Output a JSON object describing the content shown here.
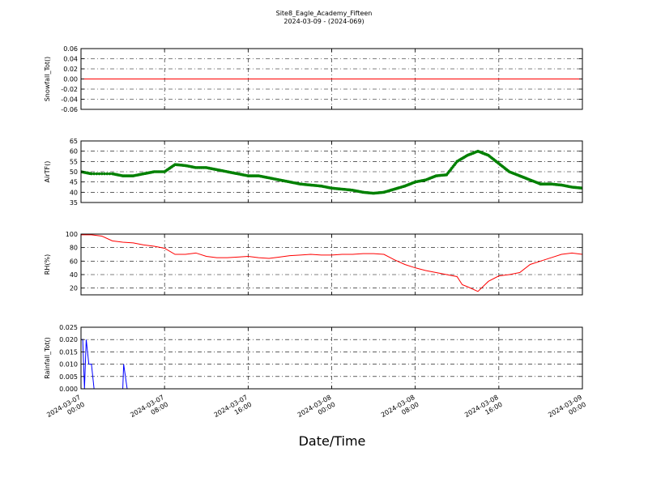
{
  "chart_data": {
    "type": "line",
    "title": "Site8_Eagle_Academy_Fifteen",
    "subtitle": "2024-03-09 - (2024-069)",
    "xlabel": "Date/Time",
    "x_range": [
      "2024-03-07 00:00",
      "2024-03-09 00:00"
    ],
    "x_ticks": [
      "2024-03-07 00:00",
      "2024-03-07 08:00",
      "2024-03-07 16:00",
      "2024-03-08 00:00",
      "2024-03-08 08:00",
      "2024-03-08 16:00",
      "2024-03-09 00:00"
    ],
    "grid": true,
    "panels": [
      {
        "ylabel": "Snowfall_Tot()",
        "ylim": [
          -0.06,
          0.06
        ],
        "yticks": [
          "-0.06",
          "-0.04",
          "-0.02",
          "0.00",
          "0.02",
          "0.04",
          "0.06"
        ],
        "color": "#ff0000",
        "points": [
          [
            "2024-03-07 00:00",
            0
          ],
          [
            "2024-03-09 00:00",
            0
          ]
        ]
      },
      {
        "ylabel": "AirTF()",
        "ylim": [
          35,
          65
        ],
        "yticks": [
          "35",
          "40",
          "45",
          "50",
          "55",
          "60",
          "65"
        ],
        "color": "#008000",
        "markers": true,
        "points": [
          [
            "2024-03-07 00:00",
            50
          ],
          [
            "2024-03-07 01:00",
            49
          ],
          [
            "2024-03-07 03:00",
            49
          ],
          [
            "2024-03-07 04:00",
            48
          ],
          [
            "2024-03-07 05:00",
            48
          ],
          [
            "2024-03-07 06:00",
            49
          ],
          [
            "2024-03-07 07:00",
            50
          ],
          [
            "2024-03-07 08:00",
            50
          ],
          [
            "2024-03-07 09:00",
            53.5
          ],
          [
            "2024-03-07 10:00",
            53
          ],
          [
            "2024-03-07 11:00",
            52
          ],
          [
            "2024-03-07 12:00",
            52
          ],
          [
            "2024-03-07 13:00",
            51
          ],
          [
            "2024-03-07 14:00",
            50
          ],
          [
            "2024-03-07 15:00",
            49
          ],
          [
            "2024-03-07 16:00",
            48
          ],
          [
            "2024-03-07 17:00",
            48
          ],
          [
            "2024-03-07 18:00",
            47
          ],
          [
            "2024-03-07 19:00",
            46
          ],
          [
            "2024-03-07 20:00",
            45
          ],
          [
            "2024-03-07 21:00",
            44
          ],
          [
            "2024-03-07 22:00",
            43.5
          ],
          [
            "2024-03-07 23:00",
            43
          ],
          [
            "2024-03-08 00:00",
            42
          ],
          [
            "2024-03-08 01:00",
            41.5
          ],
          [
            "2024-03-08 02:00",
            41
          ],
          [
            "2024-03-08 03:00",
            40
          ],
          [
            "2024-03-08 04:00",
            39.5
          ],
          [
            "2024-03-08 05:00",
            40
          ],
          [
            "2024-03-08 06:00",
            41.5
          ],
          [
            "2024-03-08 07:00",
            43
          ],
          [
            "2024-03-08 08:00",
            45
          ],
          [
            "2024-03-08 09:00",
            46
          ],
          [
            "2024-03-08 10:00",
            48
          ],
          [
            "2024-03-08 11:00",
            48.5
          ],
          [
            "2024-03-08 12:00",
            55
          ],
          [
            "2024-03-08 13:00",
            58
          ],
          [
            "2024-03-08 14:00",
            60
          ],
          [
            "2024-03-08 15:00",
            58
          ],
          [
            "2024-03-08 16:00",
            54
          ],
          [
            "2024-03-08 17:00",
            50
          ],
          [
            "2024-03-08 18:00",
            48
          ],
          [
            "2024-03-08 19:00",
            46
          ],
          [
            "2024-03-08 20:00",
            44
          ],
          [
            "2024-03-08 21:00",
            44
          ],
          [
            "2024-03-08 22:00",
            43.5
          ],
          [
            "2024-03-08 23:00",
            42.5
          ],
          [
            "2024-03-09 00:00",
            42
          ]
        ]
      },
      {
        "ylabel": "RH(%)",
        "ylim": [
          10,
          100
        ],
        "yticks": [
          "20",
          "40",
          "60",
          "80",
          "100"
        ],
        "color": "#ff0000",
        "points": [
          [
            "2024-03-07 00:00",
            99
          ],
          [
            "2024-03-07 01:00",
            99
          ],
          [
            "2024-03-07 02:00",
            97
          ],
          [
            "2024-03-07 03:00",
            90
          ],
          [
            "2024-03-07 04:00",
            88
          ],
          [
            "2024-03-07 05:00",
            87
          ],
          [
            "2024-03-07 06:00",
            84
          ],
          [
            "2024-03-07 07:00",
            82
          ],
          [
            "2024-03-07 08:00",
            79
          ],
          [
            "2024-03-07 09:00",
            70
          ],
          [
            "2024-03-07 10:00",
            70
          ],
          [
            "2024-03-07 11:00",
            72
          ],
          [
            "2024-03-07 12:00",
            67
          ],
          [
            "2024-03-07 13:00",
            65
          ],
          [
            "2024-03-07 14:00",
            65
          ],
          [
            "2024-03-07 15:00",
            66
          ],
          [
            "2024-03-07 16:00",
            67
          ],
          [
            "2024-03-07 17:00",
            65
          ],
          [
            "2024-03-07 18:00",
            64
          ],
          [
            "2024-03-07 19:00",
            66
          ],
          [
            "2024-03-07 20:00",
            68
          ],
          [
            "2024-03-07 21:00",
            69
          ],
          [
            "2024-03-07 22:00",
            70
          ],
          [
            "2024-03-07 23:00",
            69
          ],
          [
            "2024-03-08 00:00",
            69
          ],
          [
            "2024-03-08 01:00",
            70
          ],
          [
            "2024-03-08 02:00",
            70
          ],
          [
            "2024-03-08 03:00",
            71
          ],
          [
            "2024-03-08 04:00",
            71
          ],
          [
            "2024-03-08 05:00",
            70
          ],
          [
            "2024-03-08 06:00",
            62
          ],
          [
            "2024-03-08 07:00",
            55
          ],
          [
            "2024-03-08 08:00",
            50
          ],
          [
            "2024-03-08 09:00",
            46
          ],
          [
            "2024-03-08 10:00",
            43
          ],
          [
            "2024-03-08 11:00",
            40
          ],
          [
            "2024-03-08 12:00",
            37
          ],
          [
            "2024-03-08 12:30",
            25
          ],
          [
            "2024-03-08 13:00",
            22
          ],
          [
            "2024-03-08 14:00",
            15
          ],
          [
            "2024-03-08 15:00",
            30
          ],
          [
            "2024-03-08 16:00",
            38
          ],
          [
            "2024-03-08 17:00",
            40
          ],
          [
            "2024-03-08 18:00",
            43
          ],
          [
            "2024-03-08 19:00",
            55
          ],
          [
            "2024-03-08 20:00",
            60
          ],
          [
            "2024-03-08 21:00",
            65
          ],
          [
            "2024-03-08 22:00",
            70
          ],
          [
            "2024-03-08 23:00",
            72
          ],
          [
            "2024-03-09 00:00",
            70
          ]
        ]
      },
      {
        "ylabel": "Rainfall_Tot()",
        "ylim": [
          0,
          0.025
        ],
        "yticks": [
          "0.000",
          "0.005",
          "0.010",
          "0.015",
          "0.020",
          "0.025"
        ],
        "color": "#0000ff",
        "points": [
          [
            "2024-03-07 00:00",
            0.02
          ],
          [
            "2024-03-07 00:10",
            0.02
          ],
          [
            "2024-03-07 00:20",
            0
          ],
          [
            "2024-03-07 00:30",
            0.02
          ],
          [
            "2024-03-07 00:45",
            0.01
          ],
          [
            "2024-03-07 01:00",
            0.01
          ],
          [
            "2024-03-07 01:15",
            0
          ],
          [
            "2024-03-07 04:00",
            0
          ],
          [
            "2024-03-07 04:05",
            0.01
          ],
          [
            "2024-03-07 04:25",
            0
          ],
          [
            "2024-03-09 00:00",
            0
          ]
        ]
      }
    ]
  }
}
